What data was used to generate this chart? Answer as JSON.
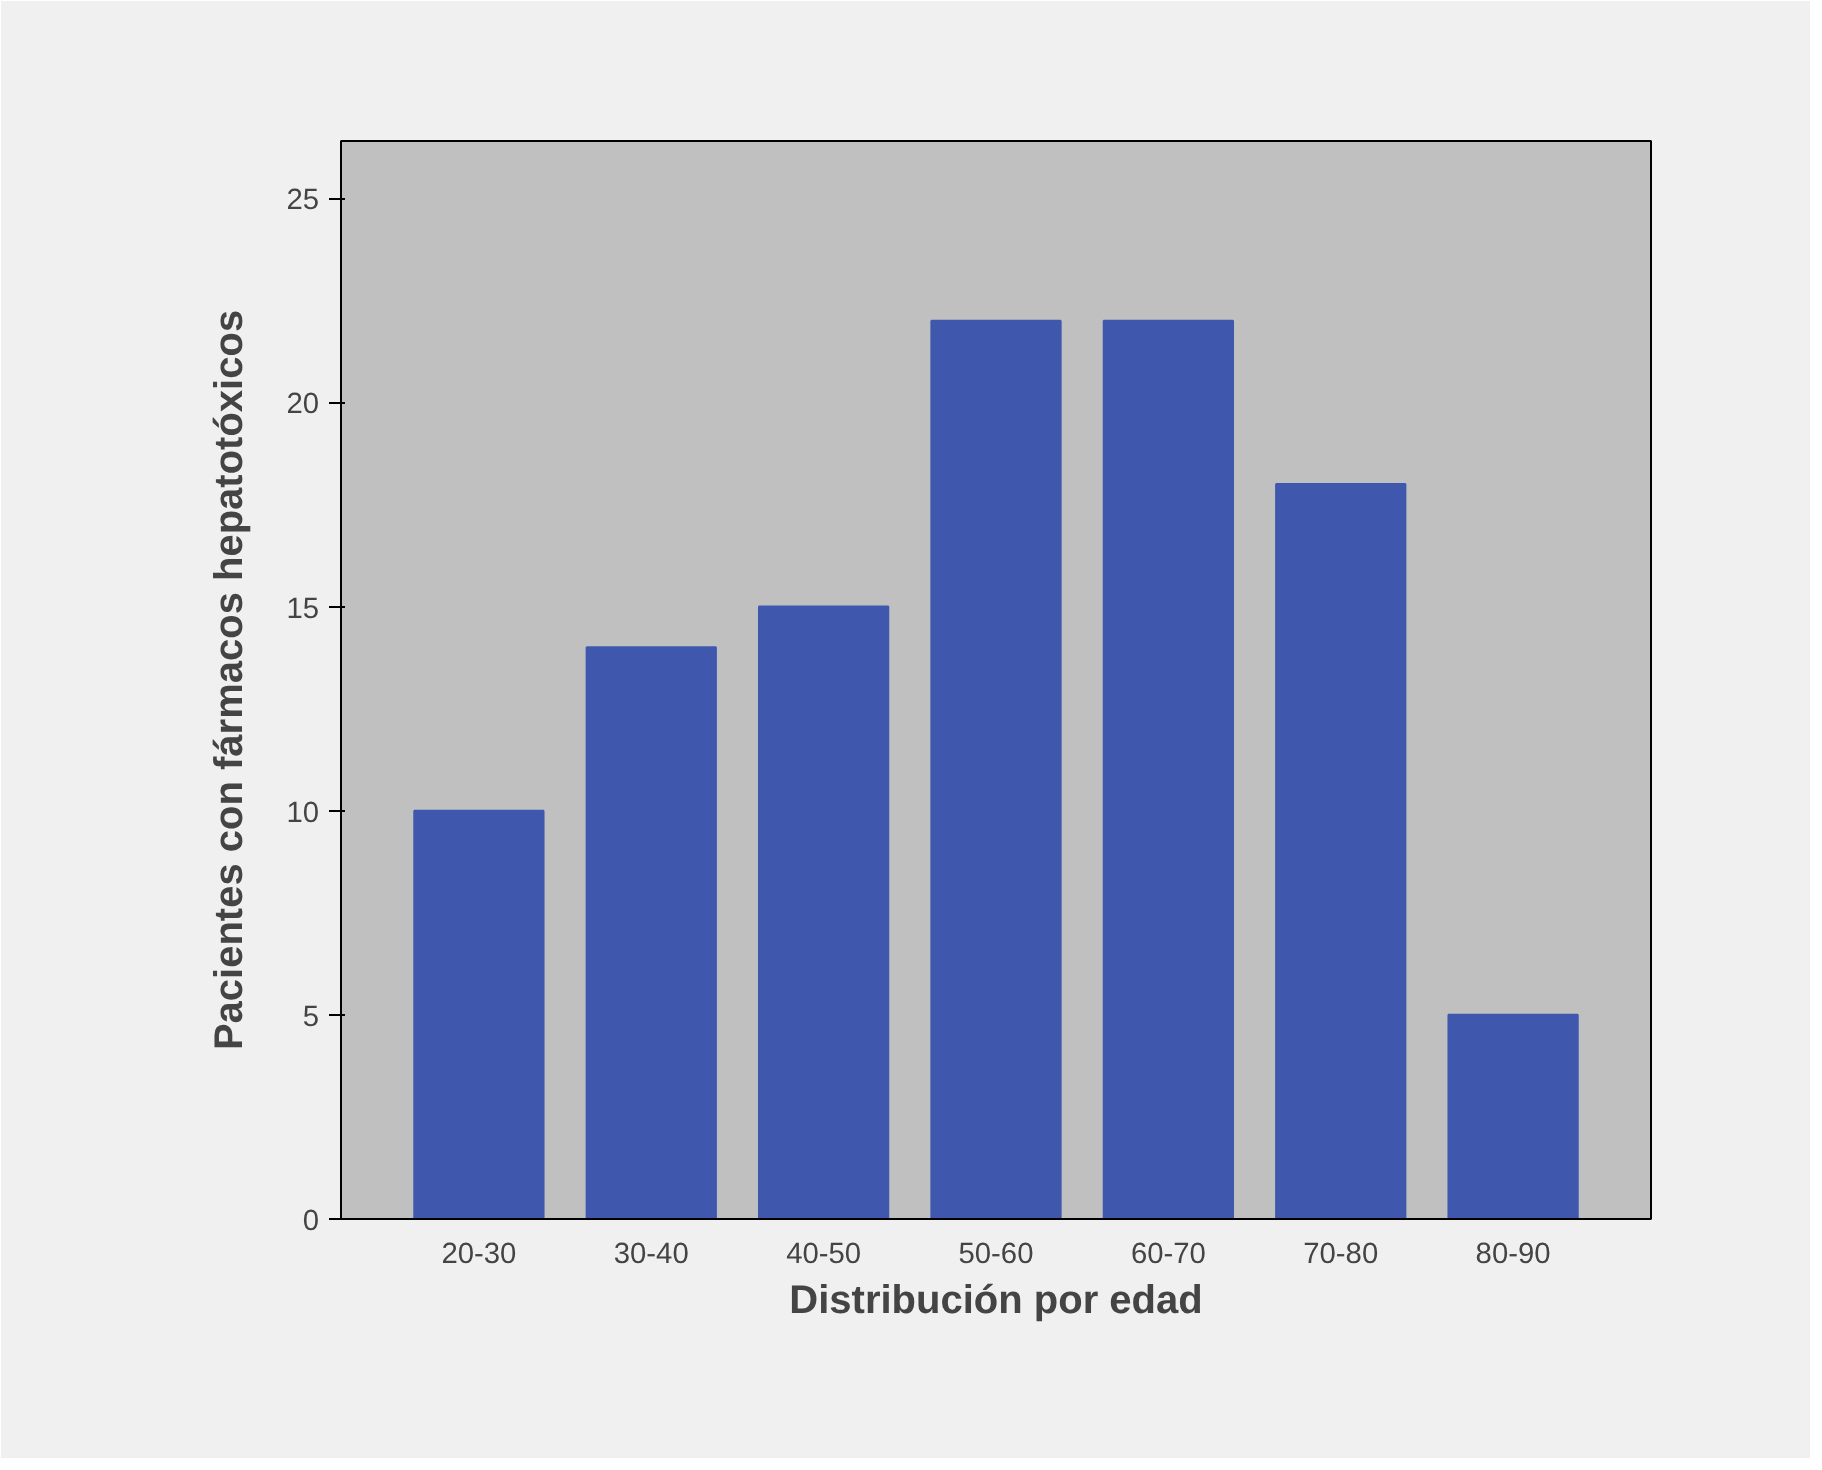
{
  "chart_data": {
    "type": "bar",
    "xlabel": "Distribución por edad",
    "ylabel": "Pacientes con fármacos hepatotóxicos",
    "categories": [
      "20-30",
      "30-40",
      "40-50",
      "50-60",
      "60-70",
      "70-80",
      "80-90"
    ],
    "values": [
      10,
      14,
      15,
      22,
      22,
      18,
      5
    ],
    "color": "#3f58ae",
    "ylim": [
      0,
      26.4
    ],
    "yticks": [
      0,
      5,
      10,
      15,
      20,
      25
    ],
    "grid": false
  }
}
